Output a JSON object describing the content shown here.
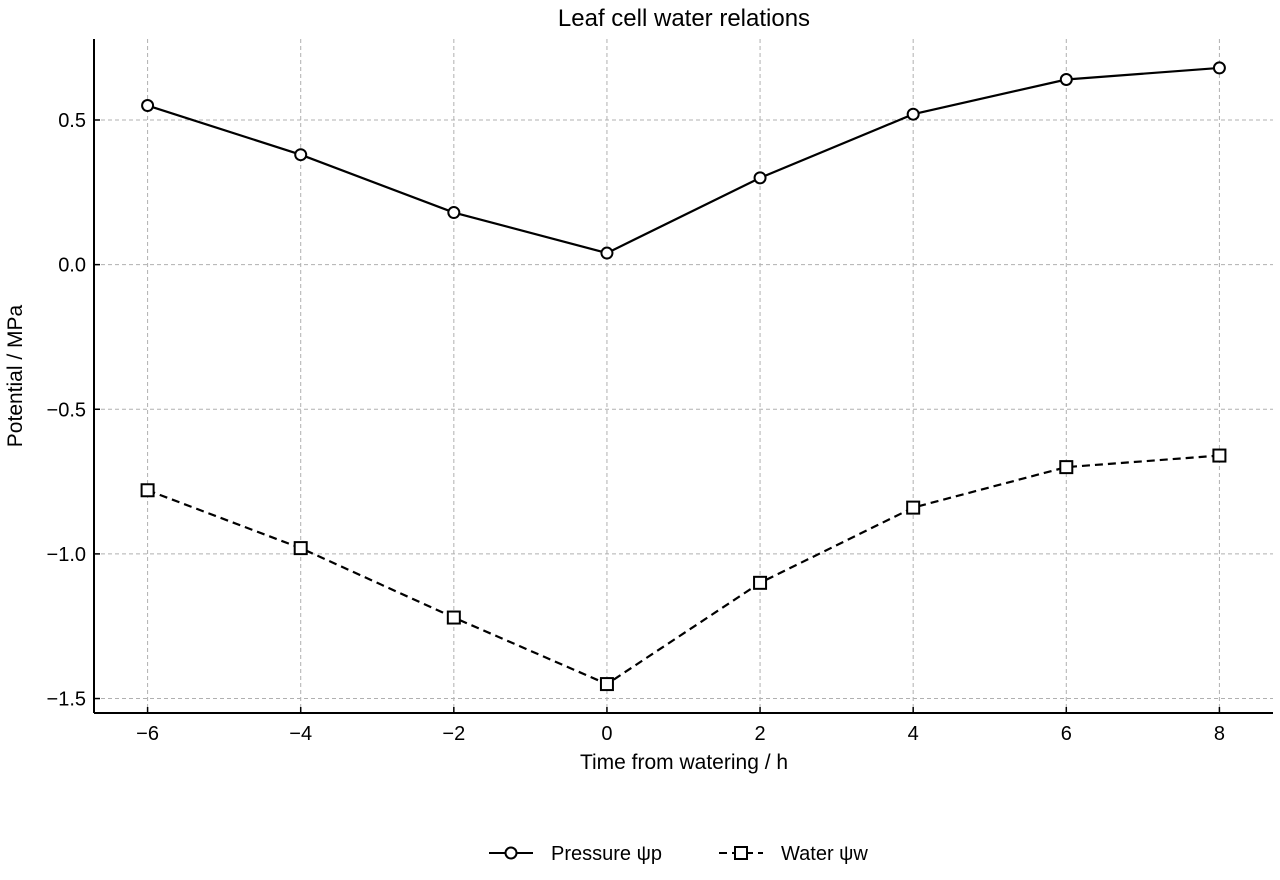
{
  "chart_data": {
    "type": "line",
    "title": "Leaf cell water relations",
    "xlabel": "Time from watering / h",
    "ylabel": "Potential / MPa",
    "x": [
      -6,
      -4,
      -2,
      0,
      2,
      4,
      6,
      8
    ],
    "xlim": [
      -6.7,
      8.7
    ],
    "ylim": [
      -1.55,
      0.78
    ],
    "xticks": [
      -6,
      -4,
      -2,
      0,
      2,
      4,
      6,
      8
    ],
    "xtick_labels": [
      "−6",
      "−4",
      "−2",
      "0",
      "2",
      "4",
      "6",
      "8"
    ],
    "yticks": [
      0.5,
      0.0,
      -0.5,
      -1.0,
      -1.5
    ],
    "ytick_labels": [
      "0.5",
      "0.0",
      "−0.5",
      "−1.0",
      "−1.5"
    ],
    "grid": true,
    "legend_position": "bottom-center",
    "series": [
      {
        "name": "Pressure ψp",
        "values": [
          0.55,
          0.38,
          0.18,
          0.04,
          0.3,
          0.52,
          0.64,
          0.68
        ],
        "marker": "circle",
        "line_style": "solid",
        "color": "#000000"
      },
      {
        "name": "Water ψw",
        "values": [
          -0.78,
          -0.98,
          -1.22,
          -1.45,
          -1.1,
          -0.84,
          -0.7,
          -0.66
        ],
        "marker": "square",
        "line_style": "dashed",
        "color": "#000000"
      }
    ]
  }
}
